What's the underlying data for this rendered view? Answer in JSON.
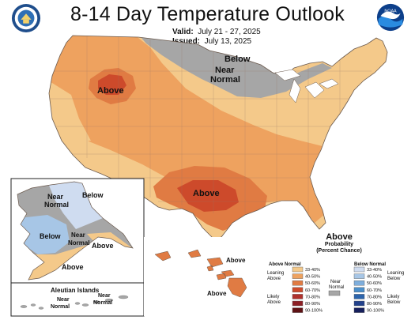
{
  "title": "8-14 Day Temperature Outlook",
  "valid_label": "Valid:",
  "valid_dates": "July 21 - 27, 2025",
  "issued_label": "Issued:",
  "issued_date": "July 13, 2025",
  "logos": {
    "left": "department-of-commerce-seal",
    "right": "noaa-logo",
    "noaa_text": "NOAA"
  },
  "map_labels": {
    "below_north": "Below",
    "near_normal_north_1": "Near",
    "near_normal_north_2": "Normal",
    "above_west": "Above",
    "above_south": "Above",
    "alaska_near_1": "Near",
    "alaska_near_2": "Normal",
    "alaska_below_ne": "Below",
    "alaska_below_sw": "Below",
    "alaska_near_s_1": "Near",
    "alaska_near_s_2": "Normal",
    "alaska_above_pen": "Above",
    "alaska_above_s": "Above",
    "hawaii_above_1": "Above",
    "hawaii_above_2": "Above",
    "aleutian_title": "Aleutian Islands",
    "aleutian_near_1": "Near",
    "aleutian_near_2": "Normal",
    "aleutian_near_3": "Near",
    "aleutian_near_4": "Normal"
  },
  "legend": {
    "title": "Above",
    "subtitle_1": "Probability",
    "subtitle_2": "(Percent Chance)",
    "above_header": "Above Normal",
    "below_header": "Below Normal",
    "leaning_above_1": "Leaning",
    "leaning_above_2": "Above",
    "likely_above_1": "Likely",
    "likely_above_2": "Above",
    "near_normal_1": "Near",
    "near_normal_2": "Normal",
    "leaning_below_1": "Leaning",
    "leaning_below_2": "Below",
    "likely_below_1": "Likely",
    "likely_below_2": "Below",
    "ranges": [
      "33-40%",
      "40-50%",
      "50-60%",
      "60-70%",
      "70-80%",
      "80-90%",
      "90-100%"
    ],
    "above_colors": [
      "#f4c98a",
      "#eea25f",
      "#e07b43",
      "#cd4a2b",
      "#b0312c",
      "#8c1f24",
      "#5e1214"
    ],
    "below_colors": [
      "#cfdcf0",
      "#a7c6e6",
      "#7eaedc",
      "#4b8fcb",
      "#2c65ad",
      "#22418b",
      "#161f5c"
    ],
    "near_color": "#a6a6a6"
  },
  "category_colors": {
    "above_33_40": "#f4c98a",
    "above_40_50": "#eea25f",
    "above_50_60": "#e07b43",
    "above_60_70": "#cd4a2b",
    "near_normal": "#a6a6a6",
    "below_33_40": "#cfdcf0",
    "below_40_50": "#a7c6e6"
  }
}
